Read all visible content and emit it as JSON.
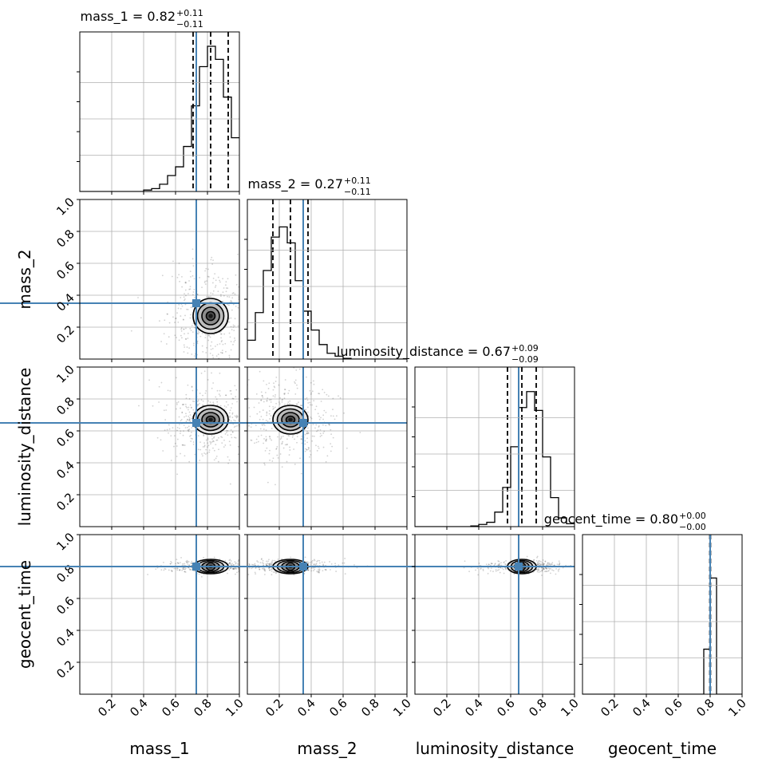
{
  "chart_data": {
    "type": "corner",
    "parameters": [
      "mass_1",
      "mass_2",
      "luminosity_distance",
      "geocent_time"
    ],
    "axis_labels": [
      "mass_1",
      "mass_2",
      "luminosity_distance",
      "geocent_time"
    ],
    "range": [
      0,
      1
    ],
    "ticks": [
      0.2,
      0.4,
      0.6,
      0.8,
      1.0
    ],
    "tick_labels": [
      "0.2",
      "0.4",
      "0.6",
      "0.8",
      "1.0"
    ],
    "grid": true,
    "injection_color": "#4682b4",
    "hist_color": "#000000",
    "injection": {
      "mass_1": 0.73,
      "mass_2": 0.35,
      "luminosity_distance": 0.65,
      "geocent_time": 0.8
    },
    "titles": [
      {
        "param": "mass_1",
        "median": "0.82",
        "upper": "+0.11",
        "lower": "−0.11"
      },
      {
        "param": "mass_2",
        "median": "0.27",
        "upper": "+0.11",
        "lower": "−0.11"
      },
      {
        "param": "luminosity_distance",
        "median": "0.67",
        "upper": "+0.09",
        "lower": "−0.09"
      },
      {
        "param": "geocent_time",
        "median": "0.80",
        "upper": "+0.00",
        "lower": "−0.00"
      }
    ],
    "histograms": [
      {
        "param": "mass_1",
        "bins": 20,
        "counts": [
          0,
          0,
          0,
          0,
          0,
          0,
          0,
          0,
          0.01,
          0.02,
          0.05,
          0.11,
          0.17,
          0.31,
          0.59,
          0.86,
          1.0,
          0.91,
          0.65,
          0.37
        ],
        "quantiles": [
          0.71,
          0.82,
          0.93
        ]
      },
      {
        "param": "mass_2",
        "bins": 20,
        "counts": [
          0.13,
          0.32,
          0.61,
          0.84,
          0.91,
          0.8,
          0.54,
          0.33,
          0.2,
          0.1,
          0.04,
          0.02,
          0.005,
          0,
          0,
          0,
          0,
          0,
          0,
          0
        ],
        "quantiles": [
          0.16,
          0.27,
          0.38
        ]
      },
      {
        "param": "luminosity_distance",
        "bins": 20,
        "counts": [
          0,
          0,
          0,
          0,
          0,
          0,
          0,
          0.005,
          0.015,
          0.03,
          0.1,
          0.27,
          0.55,
          0.82,
          0.93,
          0.8,
          0.48,
          0.2,
          0.06,
          0.02
        ],
        "quantiles": [
          0.58,
          0.67,
          0.76
        ]
      },
      {
        "param": "geocent_time",
        "bins": 25,
        "counts": [
          0,
          0,
          0,
          0,
          0,
          0,
          0,
          0,
          0,
          0,
          0,
          0,
          0,
          0,
          0,
          0,
          0,
          0,
          0,
          0.31,
          0.8,
          0,
          0,
          0,
          0
        ],
        "quantiles": [
          0.798,
          0.8,
          0.802
        ]
      }
    ],
    "pairs": [
      {
        "x": "mass_1",
        "y": "mass_2",
        "center": [
          0.82,
          0.27
        ],
        "sigma": [
          0.11,
          0.11
        ]
      },
      {
        "x": "mass_1",
        "y": "luminosity_distance",
        "center": [
          0.82,
          0.67
        ],
        "sigma": [
          0.11,
          0.09
        ]
      },
      {
        "x": "mass_2",
        "y": "luminosity_distance",
        "center": [
          0.27,
          0.67
        ],
        "sigma": [
          0.11,
          0.09
        ]
      },
      {
        "x": "mass_1",
        "y": "geocent_time",
        "center": [
          0.82,
          0.8
        ],
        "sigma": [
          0.11,
          0.015
        ]
      },
      {
        "x": "mass_2",
        "y": "geocent_time",
        "center": [
          0.27,
          0.8
        ],
        "sigma": [
          0.11,
          0.015
        ]
      },
      {
        "x": "luminosity_distance",
        "y": "geocent_time",
        "center": [
          0.67,
          0.8
        ],
        "sigma": [
          0.09,
          0.015
        ]
      }
    ]
  }
}
